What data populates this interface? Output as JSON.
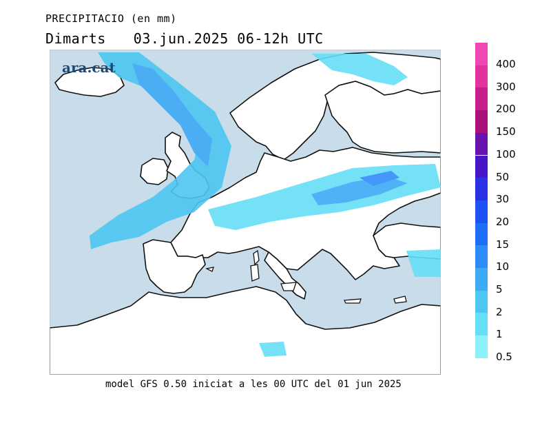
{
  "title": {
    "line1": "PRECIPITACIO (en mm)",
    "day": "Dimarts",
    "datetime": "03.jun.2025 06-12h UTC"
  },
  "brand": "ara.cat",
  "footer": "model GFS 0.50 iniciat a les 00 UTC del 01 jun 2025",
  "legend": {
    "labels": [
      "400",
      "300",
      "200",
      "150",
      "100",
      "50",
      "30",
      "20",
      "15",
      "10",
      "5",
      "2",
      "1",
      "0.5"
    ],
    "colors": [
      "#f046b4",
      "#e3319e",
      "#c81e8c",
      "#a8107a",
      "#6614b0",
      "#4616c8",
      "#2a32e6",
      "#1e52f2",
      "#1e6ef8",
      "#2e8cf8",
      "#3eaaf6",
      "#4ec6f2",
      "#66def6",
      "#8cf2fa"
    ]
  },
  "map_colors": {
    "sea": "#c8dcea",
    "land": "#ffffff",
    "coast": "#111111"
  }
}
